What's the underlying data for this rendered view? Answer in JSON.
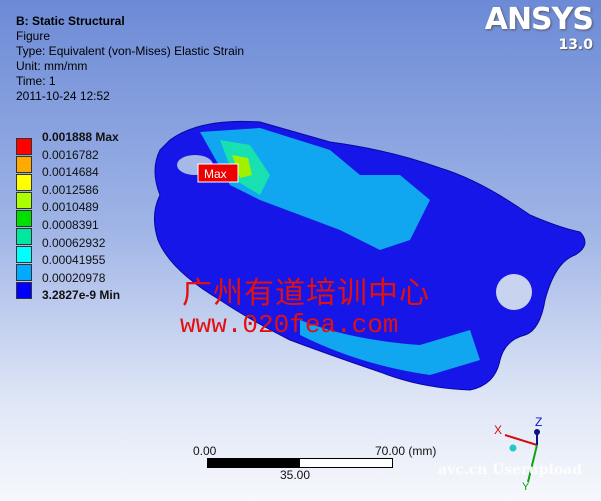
{
  "info": {
    "title": "B: Static Structural",
    "line1": "Figure",
    "type": "Type: Equivalent (von-Mises) Elastic Strain",
    "unit": "Unit: mm/mm",
    "time": "Time: 1",
    "date": "2011-10-24 12:52"
  },
  "logo": {
    "brand": "ANSYS",
    "version": "13.0"
  },
  "legend": {
    "labels": [
      "0.001888 Max",
      "0.0016782",
      "0.0014684",
      "0.0012586",
      "0.0010489",
      "0.0008391",
      "0.00062932",
      "0.00041955",
      "0.00020978",
      "3.2827e-9 Min"
    ],
    "colors": [
      "#ff0000",
      "#ffaa00",
      "#ffff00",
      "#aaff00",
      "#00e000",
      "#00e8a0",
      "#00ffff",
      "#00aaff",
      "#0000ff"
    ]
  },
  "probe": {
    "label": "Max"
  },
  "watermark": {
    "cn": "广州有道培训中心",
    "url": "www.020fea.com",
    "corner": "avc.cn Userupload"
  },
  "scale_bar": {
    "left": "0.00",
    "right": "70.00 (mm)",
    "mid": "35.00"
  },
  "triad": {
    "x": "X",
    "z": "Z",
    "y": "Y"
  }
}
